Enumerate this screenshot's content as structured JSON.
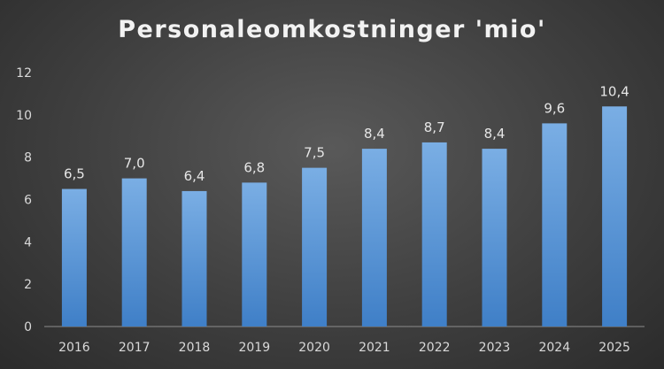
{
  "chart_data": {
    "type": "bar",
    "title": "Personaleomkostninger 'mio'",
    "xlabel": "",
    "ylabel": "",
    "categories": [
      "2016",
      "2017",
      "2018",
      "2019",
      "2020",
      "2021",
      "2022",
      "2023",
      "2024",
      "2025"
    ],
    "values": [
      6.5,
      7.0,
      6.4,
      6.8,
      7.5,
      8.4,
      8.7,
      8.4,
      9.6,
      10.4
    ],
    "data_labels": [
      "6,5",
      "7,0",
      "6,4",
      "6,8",
      "7,5",
      "8,4",
      "8,7",
      "8,4",
      "9,6",
      "10,4"
    ],
    "ylim": [
      0,
      12
    ],
    "yticks": [
      0,
      2,
      4,
      6,
      8,
      10,
      12
    ],
    "grid": false,
    "legend": "none",
    "bar_color_top": "#7aaee4",
    "bar_color_bottom": "#3f7fc7",
    "background": "#444444"
  }
}
